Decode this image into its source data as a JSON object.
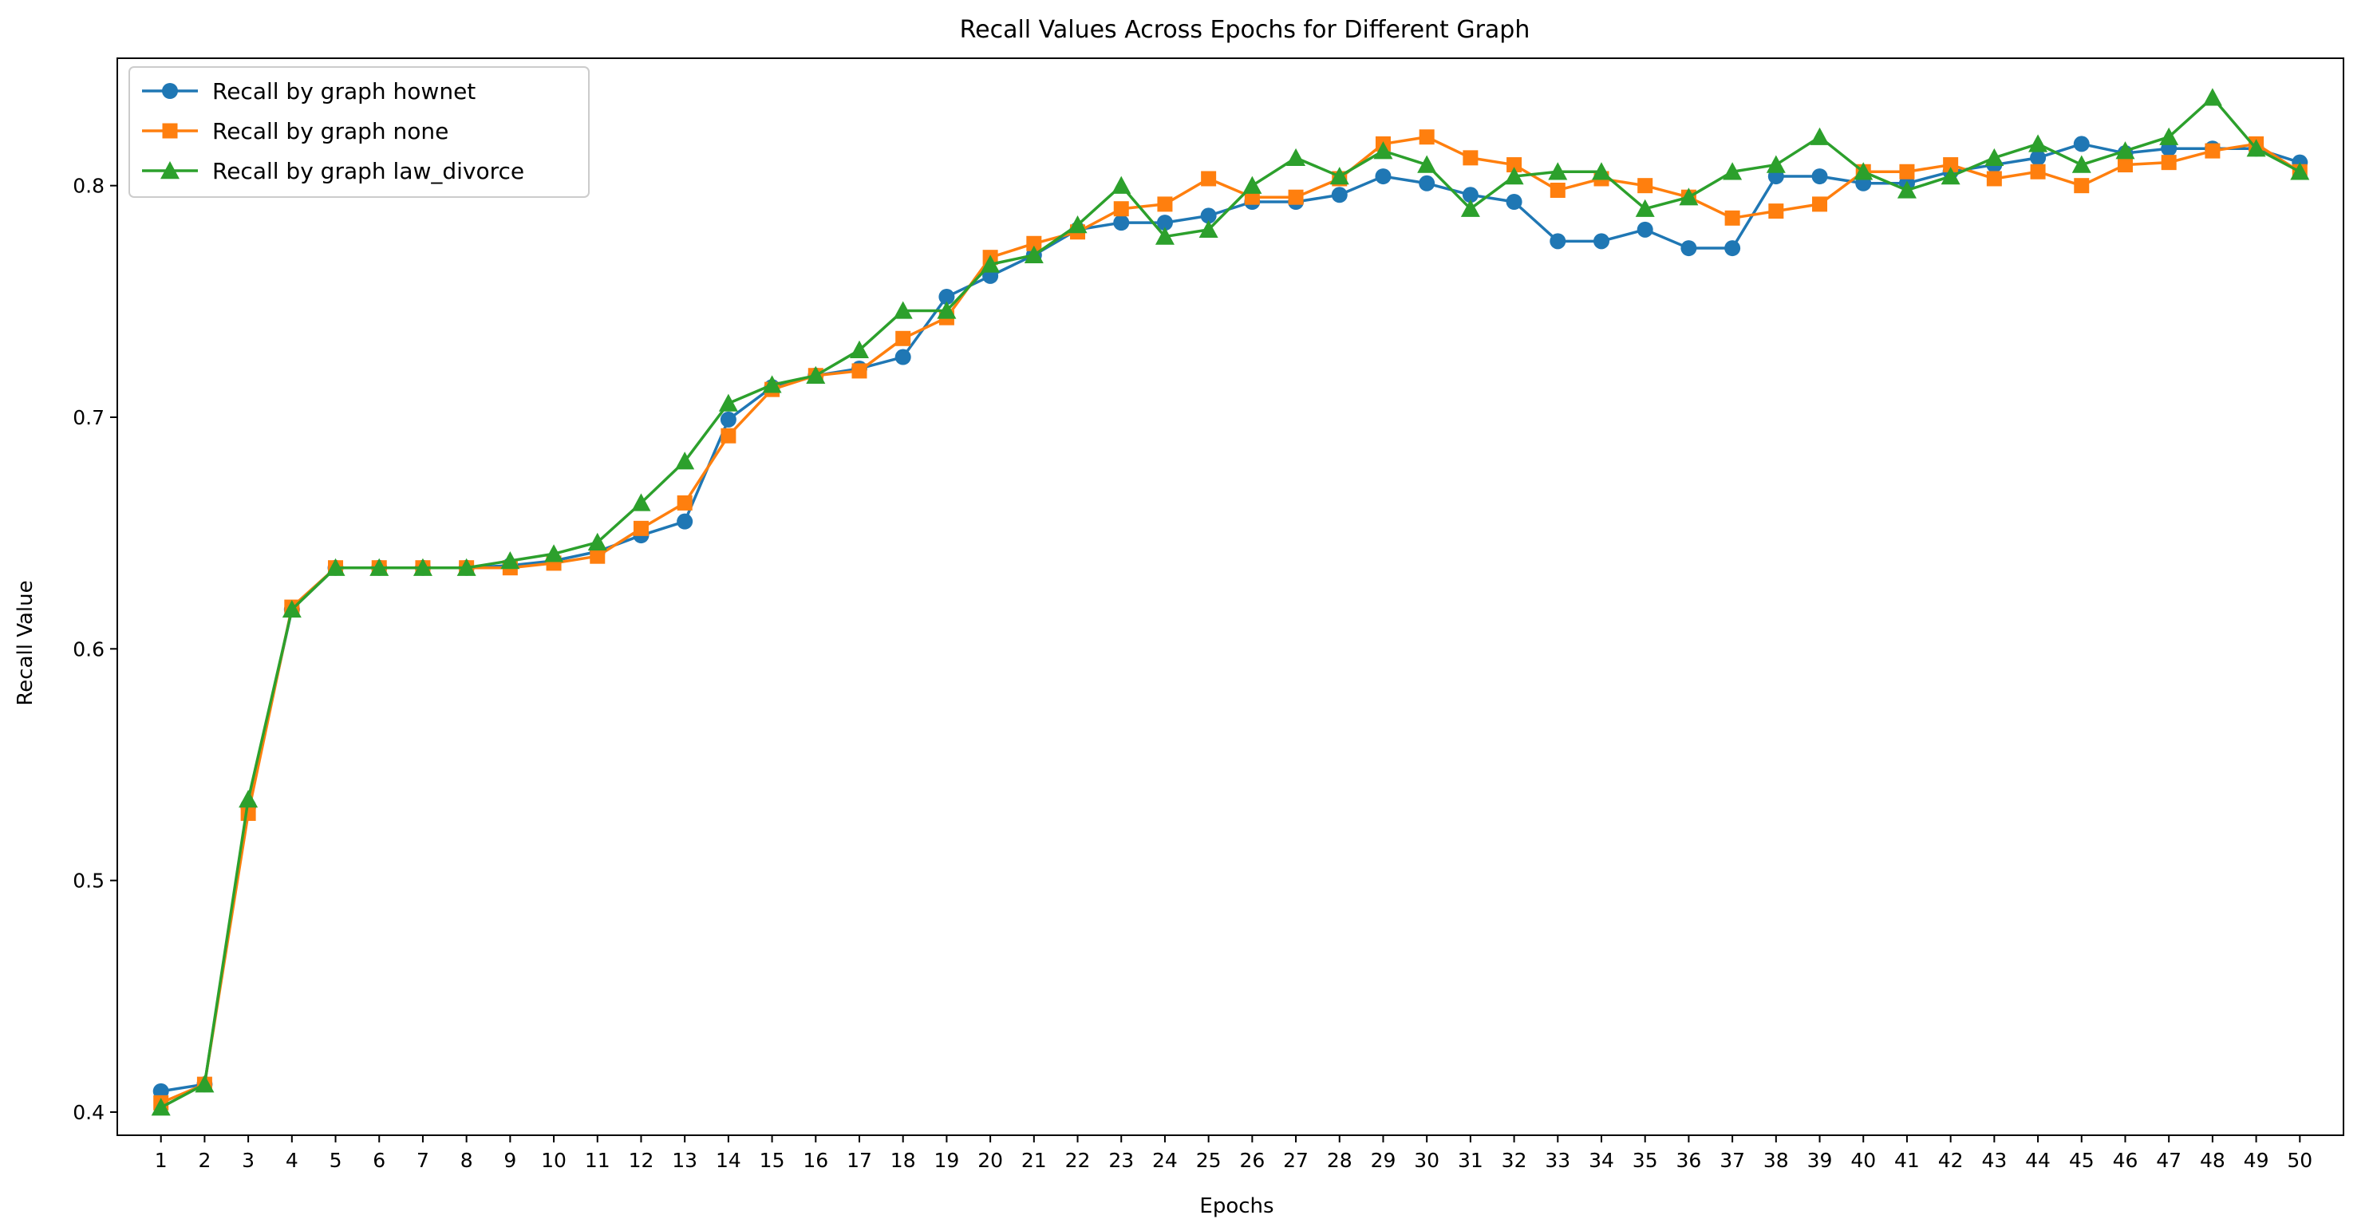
{
  "chart_data": {
    "type": "line",
    "title": "Recall Values Across Epochs for Different Graph",
    "xlabel": "Epochs",
    "ylabel": "Recall Value",
    "ylim": [
      0.39,
      0.855
    ],
    "xlim": [
      0,
      51
    ],
    "yticks": [
      0.4,
      0.5,
      0.6,
      0.7,
      0.8
    ],
    "ytick_labels": [
      "0.4",
      "0.5",
      "0.6",
      "0.7",
      "0.8"
    ],
    "x": [
      1,
      2,
      3,
      4,
      5,
      6,
      7,
      8,
      9,
      10,
      11,
      12,
      13,
      14,
      15,
      16,
      17,
      18,
      19,
      20,
      21,
      22,
      23,
      24,
      25,
      26,
      27,
      28,
      29,
      30,
      31,
      32,
      33,
      34,
      35,
      36,
      37,
      38,
      39,
      40,
      41,
      42,
      43,
      44,
      45,
      46,
      47,
      48,
      49,
      50
    ],
    "grid": false,
    "legend_position": "top-left",
    "series": [
      {
        "name": "Recall by graph hownet",
        "color": "#1f77b4",
        "marker": "circle",
        "values": [
          0.409,
          0.412,
          0.532,
          0.617,
          0.635,
          0.635,
          0.635,
          0.635,
          0.636,
          0.638,
          0.642,
          0.649,
          0.655,
          0.699,
          0.713,
          0.718,
          0.721,
          0.726,
          0.752,
          0.761,
          0.77,
          0.781,
          0.784,
          0.784,
          0.787,
          0.793,
          0.793,
          0.796,
          0.804,
          0.801,
          0.796,
          0.793,
          0.776,
          0.776,
          0.781,
          0.773,
          0.773,
          0.804,
          0.804,
          0.801,
          0.801,
          0.806,
          0.809,
          0.812,
          0.818,
          0.814,
          0.816,
          0.816,
          0.816,
          0.81
        ]
      },
      {
        "name": "Recall by graph none",
        "color": "#ff7f0e",
        "marker": "square",
        "values": [
          0.404,
          0.412,
          0.529,
          0.618,
          0.635,
          0.635,
          0.635,
          0.635,
          0.635,
          0.637,
          0.64,
          0.652,
          0.663,
          0.692,
          0.712,
          0.718,
          0.72,
          0.734,
          0.743,
          0.769,
          0.775,
          0.78,
          0.79,
          0.792,
          0.803,
          0.795,
          0.795,
          0.803,
          0.818,
          0.821,
          0.812,
          0.809,
          0.798,
          0.803,
          0.8,
          0.795,
          0.786,
          0.789,
          0.792,
          0.806,
          0.806,
          0.809,
          0.803,
          0.806,
          0.8,
          0.809,
          0.81,
          0.815,
          0.818,
          0.806
        ]
      },
      {
        "name": "Recall by graph law_divorce",
        "color": "#2ca02c",
        "marker": "triangle",
        "values": [
          0.402,
          0.412,
          0.535,
          0.617,
          0.635,
          0.635,
          0.635,
          0.635,
          0.638,
          0.641,
          0.646,
          0.663,
          0.681,
          0.706,
          0.714,
          0.718,
          0.729,
          0.746,
          0.746,
          0.766,
          0.77,
          0.783,
          0.8,
          0.778,
          0.781,
          0.8,
          0.812,
          0.804,
          0.815,
          0.809,
          0.79,
          0.804,
          0.806,
          0.806,
          0.79,
          0.795,
          0.806,
          0.809,
          0.821,
          0.806,
          0.798,
          0.804,
          0.812,
          0.818,
          0.809,
          0.815,
          0.821,
          0.838,
          0.816,
          0.806
        ]
      }
    ]
  }
}
